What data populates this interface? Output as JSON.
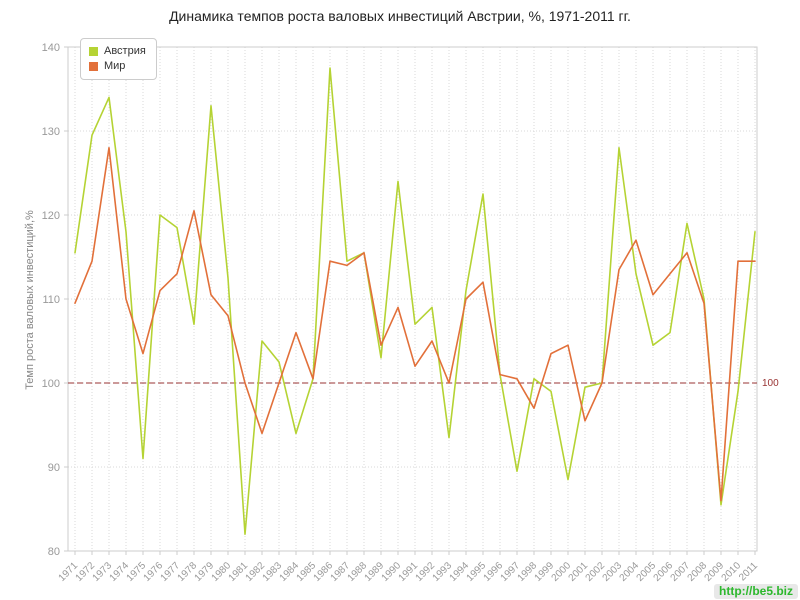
{
  "chart_data": {
    "type": "line",
    "title": "Динамика темпов роста валовых инвестиций Австрии, %, 1971-2011 гг.",
    "ylabel": "Темп роста валовых инвестиций,%",
    "xlabel": "",
    "ylim": [
      80,
      140
    ],
    "yticks": [
      80,
      90,
      100,
      110,
      120,
      130,
      140
    ],
    "grid": true,
    "legend_position": "top-left",
    "categories": [
      "1971",
      "1972",
      "1973",
      "1974",
      "1975",
      "1976",
      "1977",
      "1978",
      "1979",
      "1980",
      "1981",
      "1982",
      "1983",
      "1984",
      "1985",
      "1986",
      "1987",
      "1988",
      "1989",
      "1990",
      "1991",
      "1992",
      "1993",
      "1994",
      "1995",
      "1996",
      "1997",
      "1998",
      "1999",
      "2000",
      "2001",
      "2002",
      "2003",
      "2004",
      "2005",
      "2006",
      "2007",
      "2008",
      "2009",
      "2010",
      "2011"
    ],
    "reference_line": {
      "value": 100,
      "label": "100",
      "color": "#993333",
      "style": "dashed"
    },
    "series": [
      {
        "name": "Австрия",
        "color": "#b5d334",
        "values": [
          115.5,
          129.5,
          134,
          118,
          91,
          120,
          118.5,
          107,
          133,
          112.5,
          82,
          105,
          102.5,
          94,
          100.5,
          137.5,
          114.5,
          115.5,
          103,
          124,
          107,
          109,
          93.5,
          111,
          122.5,
          101,
          89.5,
          100.5,
          99,
          88.5,
          99.5,
          100,
          128,
          113,
          104.5,
          106,
          119,
          110,
          85.5,
          99,
          118
        ]
      },
      {
        "name": "Мир",
        "color": "#e2703a",
        "values": [
          109.5,
          114.5,
          128,
          110,
          103.5,
          111,
          113,
          120.5,
          110.5,
          108,
          100,
          94,
          100,
          106,
          100.5,
          114.5,
          114,
          115.5,
          104.5,
          109,
          102,
          105,
          100,
          110,
          112,
          101,
          100.5,
          97,
          103.5,
          104.5,
          95.5,
          100,
          113.5,
          117,
          110.5,
          113,
          115.5,
          109.5,
          86,
          114.5,
          114.5
        ]
      }
    ]
  },
  "watermark": {
    "text": "http://be5.biz",
    "color": "#2db82d"
  },
  "colors": {
    "plot_bg": "#ffffff",
    "grid": "#d8d8d8",
    "axis_border": "#cccccc",
    "tick_text": "#999999",
    "title_text": "#222222"
  }
}
